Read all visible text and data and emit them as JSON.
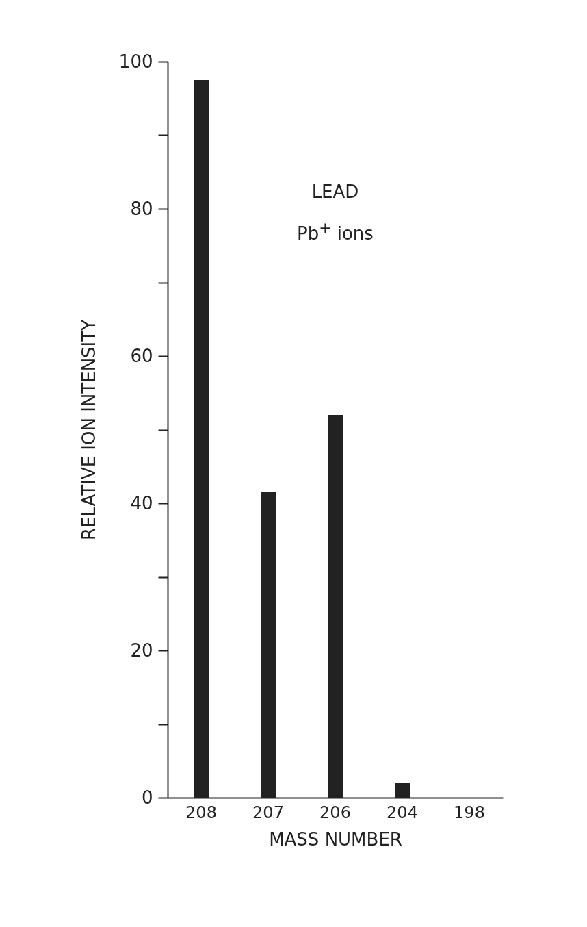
{
  "chart_data": {
    "type": "bar",
    "xlabel": "MASS NUMBER",
    "ylabel": "RELATIVE ION INTENSITY",
    "categories": [
      "208",
      "207",
      "206",
      "204",
      "198"
    ],
    "values": [
      97.5,
      41.5,
      52,
      2,
      null
    ],
    "color": "#222222",
    "ylim": [
      0,
      100
    ],
    "yticks": [
      0,
      {
        "value": 10,
        "label": null
      },
      20,
      {
        "value": 30,
        "label": null
      },
      40,
      {
        "value": 50,
        "label": null
      },
      60,
      {
        "value": 70,
        "label": null
      },
      80,
      {
        "value": 90,
        "label": null
      },
      100
    ],
    "grid": false,
    "annotations": [
      "LEAD",
      "Pb$^{+}$ ions"
    ]
  }
}
